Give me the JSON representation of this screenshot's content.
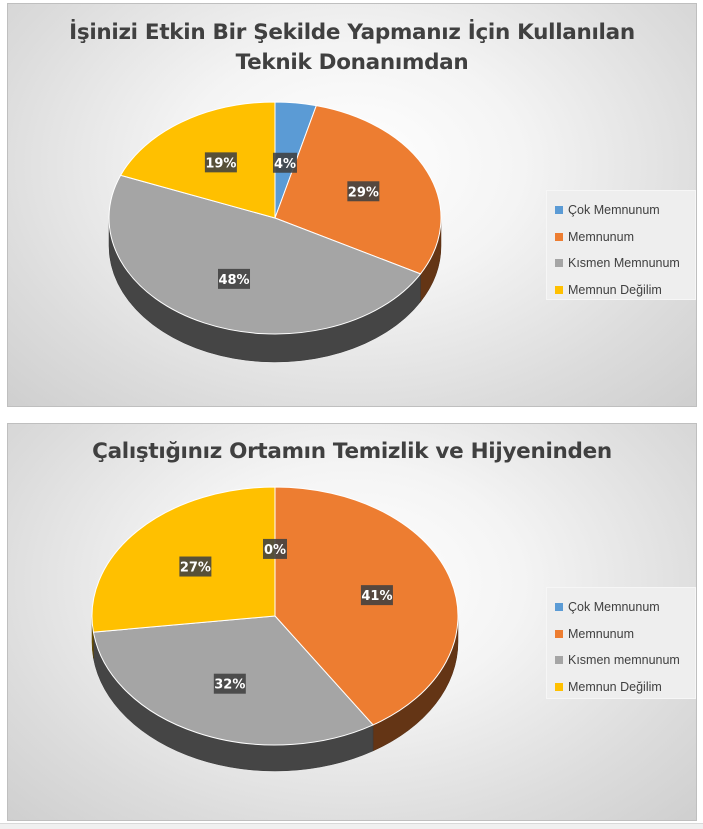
{
  "chart_data": [
    {
      "type": "pie",
      "title": "İşinizi Etkin Bir Şekilde Yapmanız İçin Kullanılan Teknik Donanımdan",
      "title_lines": [
        "İşinizi Etkin Bir Şekilde Yapmanız İçin Kullanılan",
        "Teknik Donanımdan"
      ],
      "categories": [
        "Çok Memnunum",
        "Memnunum",
        "Kısmen Memnunum",
        "Memnun Değilim"
      ],
      "values": [
        4,
        29,
        48,
        19
      ],
      "labels": [
        "4%",
        "29%",
        "48%",
        "19%"
      ],
      "colors": [
        "#5B9BD5",
        "#ED7D31",
        "#A5A5A5",
        "#FFC000"
      ],
      "style": "3d",
      "legend_position": "right"
    },
    {
      "type": "pie",
      "title": "Çalıştığınız Ortamın Temizlik ve Hijyeninden",
      "title_lines": [
        "Çalıştığınız Ortamın Temizlik ve Hijyeninden"
      ],
      "categories": [
        "Çok Memnunum",
        "Memnunum",
        "Kısmen memnunum",
        "Memnun Değilim"
      ],
      "values": [
        0,
        41,
        32,
        27
      ],
      "labels": [
        "0%",
        "41%",
        "32%",
        "27%"
      ],
      "colors": [
        "#5B9BD5",
        "#ED7D31",
        "#A5A5A5",
        "#FFC000"
      ],
      "style": "3d",
      "legend_position": "right"
    }
  ]
}
